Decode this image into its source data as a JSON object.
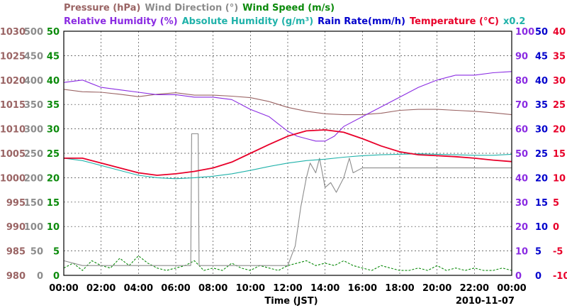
{
  "chart_data": {
    "type": "line",
    "date": "2010-11-07",
    "xlabel": "Time (JST)",
    "x_ticks": [
      "00:00",
      "02:00",
      "04:00",
      "06:00",
      "08:00",
      "10:00",
      "12:00",
      "14:00",
      "16:00",
      "18:00",
      "20:00",
      "22:00",
      "00:00"
    ],
    "x_range_hours": [
      0,
      24
    ],
    "grid": true,
    "legend_line1": [
      {
        "text": "Pressure (hPa)",
        "color": "#9a6464"
      },
      {
        "text": "Wind Direction (°)",
        "color": "#8c8c8c"
      },
      {
        "text": "Wind Speed (m/s)",
        "color": "#0a8a0a"
      }
    ],
    "legend_line2": [
      {
        "text": "Relative Humidity (%)",
        "color": "#8a2be2"
      },
      {
        "text": "Absolute Humidity (g/m³)",
        "color": "#20b2aa"
      },
      {
        "text": "Rain Rate(mm/h)",
        "color": "#0000cc"
      },
      {
        "text": "Temperature (°C)",
        "color": "#e8002a"
      },
      {
        "text": "x0.2",
        "color": "#20b2aa"
      }
    ],
    "axes": {
      "pressure": {
        "color": "#9a6464",
        "min": 980,
        "max": 1030,
        "ticks": [
          980,
          985,
          990,
          995,
          1000,
          1005,
          1010,
          1015,
          1020,
          1025,
          1030
        ]
      },
      "wind_direction": {
        "color": "#8c8c8c",
        "min": 0,
        "max": 500,
        "ticks": [
          0,
          50,
          100,
          150,
          200,
          250,
          300,
          350,
          400,
          450,
          500
        ]
      },
      "wind_speed": {
        "color": "#0a8a0a",
        "min": 0,
        "max": 50,
        "ticks": [
          0,
          5,
          10,
          15,
          20,
          25,
          30,
          35,
          40,
          45,
          50
        ]
      },
      "relative_humidity": {
        "color": "#8a2be2",
        "min": 0,
        "max": 100,
        "ticks": [
          0,
          10,
          20,
          30,
          40,
          50,
          60,
          70,
          80,
          90,
          100
        ]
      },
      "rain_rate": {
        "color": "#0000cc",
        "min": 0,
        "max": 50,
        "ticks": [
          0,
          5,
          10,
          15,
          20,
          25,
          30,
          35,
          40,
          45,
          50
        ]
      },
      "temperature": {
        "color": "#e8002a",
        "min": -10,
        "max": 40,
        "ticks": [
          -10,
          -5,
          0,
          5,
          10,
          15,
          20,
          25,
          30,
          35,
          40
        ]
      }
    },
    "series": [
      {
        "name": "Pressure (hPa)",
        "axis": "pressure",
        "color": "#9a6464",
        "x": [
          0,
          1,
          2,
          3,
          4,
          5,
          6,
          7,
          8,
          9,
          10,
          11,
          12,
          13,
          14,
          15,
          16,
          17,
          18,
          19,
          20,
          21,
          22,
          23,
          24
        ],
        "y": [
          1018.1,
          1017.6,
          1017.5,
          1017.1,
          1016.6,
          1017.1,
          1017.4,
          1016.9,
          1016.9,
          1016.7,
          1016.4,
          1015.6,
          1014.4,
          1013.6,
          1013.1,
          1012.9,
          1012.9,
          1013.2,
          1013.8,
          1014.0,
          1014.0,
          1013.8,
          1013.6,
          1013.3,
          1012.9
        ]
      },
      {
        "name": "Wind Direction (°)",
        "axis": "wind_direction",
        "color": "#8c8c8c",
        "x": [
          0,
          1,
          2,
          3,
          4,
          5,
          6,
          6.8,
          6.85,
          7.2,
          7.25,
          8,
          9,
          10,
          11,
          12,
          12.4,
          12.7,
          13,
          13.2,
          13.5,
          13.7,
          14,
          14.3,
          14.6,
          15,
          15.3,
          15.5,
          16,
          17,
          18,
          19,
          20,
          21,
          22,
          23,
          24
        ],
        "y": [
          30,
          20,
          20,
          20,
          20,
          20,
          20,
          20,
          290,
          290,
          20,
          20,
          20,
          20,
          20,
          20,
          60,
          140,
          200,
          230,
          210,
          240,
          180,
          190,
          170,
          200,
          240,
          210,
          220,
          220,
          220,
          220,
          220,
          220,
          220,
          220,
          220
        ]
      },
      {
        "name": "Wind Speed (m/s)",
        "axis": "wind_speed",
        "color": "#0a8a0a",
        "x": [
          0,
          0.5,
          1,
          1.5,
          2,
          2.5,
          3,
          3.5,
          4,
          4.5,
          5,
          5.5,
          6,
          6.5,
          7,
          7.5,
          8,
          8.5,
          9,
          9.5,
          10,
          10.5,
          11,
          11.5,
          12,
          12.5,
          13,
          13.5,
          14,
          14.5,
          15,
          15.5,
          16,
          16.5,
          17,
          17.5,
          18,
          18.5,
          19,
          19.5,
          20,
          20.5,
          21,
          21.5,
          22,
          22.5,
          23,
          23.5,
          24
        ],
        "y": [
          1.5,
          2.5,
          1,
          3,
          2,
          1.5,
          3.5,
          2,
          4,
          2.5,
          1.5,
          1,
          1.5,
          2,
          3,
          1,
          1.5,
          1,
          2.5,
          1.5,
          1,
          2,
          1.5,
          1,
          2,
          2.5,
          3,
          2,
          2.5,
          2,
          3,
          2,
          1.5,
          1,
          2,
          1.5,
          1,
          1,
          1.5,
          1,
          2,
          1,
          1.5,
          1,
          1.5,
          1,
          1,
          1.5,
          1
        ]
      },
      {
        "name": "Relative Humidity (%)",
        "axis": "relative_humidity",
        "color": "#8a2be2",
        "x": [
          0,
          1,
          2,
          3,
          4,
          5,
          6,
          7,
          8,
          9,
          10,
          11,
          11.5,
          12,
          12.5,
          13,
          13.5,
          14,
          14.5,
          15,
          16,
          17,
          18,
          19,
          20,
          21,
          22,
          23,
          24
        ],
        "y": [
          79,
          80,
          77,
          76,
          75,
          74,
          74,
          73,
          73,
          72,
          68,
          65,
          62,
          59,
          57,
          56,
          55,
          55,
          57,
          61,
          65,
          69,
          73,
          77,
          80,
          82,
          82,
          83,
          83.5
        ]
      },
      {
        "name": "Absolute Humidity (g/m³)",
        "axis": "temperature",
        "color": "#20b2aa",
        "x": [
          0,
          1,
          2,
          3,
          4,
          5,
          6,
          7,
          8,
          9,
          10,
          11,
          12,
          13,
          14,
          15,
          16,
          17,
          18,
          19,
          20,
          21,
          22,
          23,
          24
        ],
        "y": [
          14.0,
          13.5,
          12.5,
          11.5,
          10.5,
          10.0,
          9.8,
          10.0,
          10.3,
          10.8,
          11.5,
          12.3,
          13.0,
          13.5,
          13.8,
          14.2,
          14.5,
          14.7,
          14.8,
          14.9,
          14.8,
          14.7,
          14.6,
          14.6,
          14.8
        ]
      },
      {
        "name": "Temperature (°C)",
        "axis": "temperature",
        "color": "#e8002a",
        "x": [
          0,
          1,
          2,
          3,
          4,
          5,
          6,
          7,
          8,
          9,
          10,
          11,
          12,
          13,
          14,
          15,
          16,
          17,
          18,
          19,
          20,
          21,
          22,
          23,
          24
        ],
        "y": [
          14.0,
          14.0,
          13.0,
          12.0,
          11.0,
          10.5,
          10.8,
          11.3,
          12.0,
          13.2,
          15.0,
          16.8,
          18.5,
          19.6,
          19.8,
          19.3,
          18.0,
          16.5,
          15.3,
          14.7,
          14.5,
          14.3,
          14.0,
          13.6,
          13.3
        ]
      },
      {
        "name": "Rain Rate(mm/h)",
        "axis": "rain_rate",
        "color": "#0000cc",
        "x": [
          0,
          24
        ],
        "y": [
          0,
          0
        ]
      }
    ]
  }
}
